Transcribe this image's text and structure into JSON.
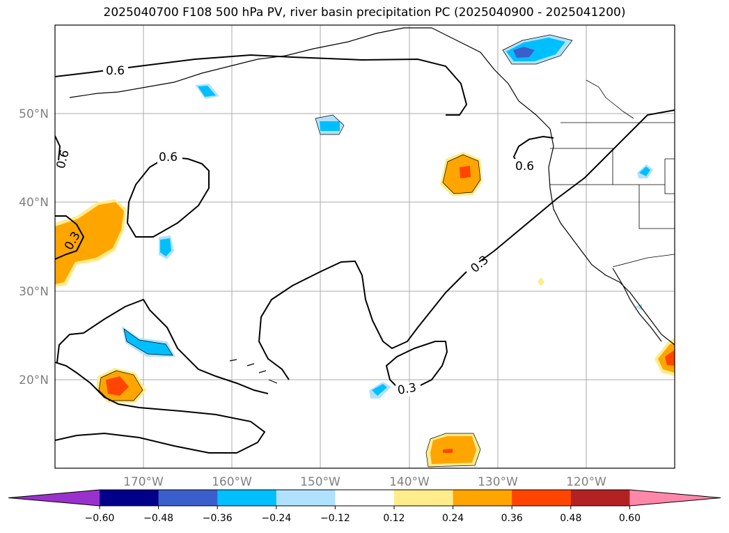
{
  "title": "2025040700 F108 500 hPa PV, river basin precipitation PC (2025040900 - 2025041200)",
  "latitude_labels": [
    "50°N",
    "40°N",
    "30°N",
    "20°N"
  ],
  "longitude_labels": [
    "170°W",
    "160°W",
    "150°W",
    "140°W",
    "130°W",
    "120°W"
  ],
  "contour_labels": [
    "0.6",
    "0.6",
    "0.6",
    "0.6",
    "0.3",
    "0.3",
    "0.3"
  ],
  "colorbar": {
    "ticks": [
      "−0.60",
      "−0.48",
      "−0.36",
      "−0.24",
      "−0.12",
      "0.12",
      "0.24",
      "0.36",
      "0.48",
      "0.60"
    ],
    "colors": [
      "#9932cc",
      "#00008b",
      "#3a5fcd",
      "#00bfff",
      "#b0e2ff",
      "#ffffff",
      "#ffec8b",
      "#ffa500",
      "#ff4500",
      "#b22222",
      "#ff88aa"
    ]
  }
}
